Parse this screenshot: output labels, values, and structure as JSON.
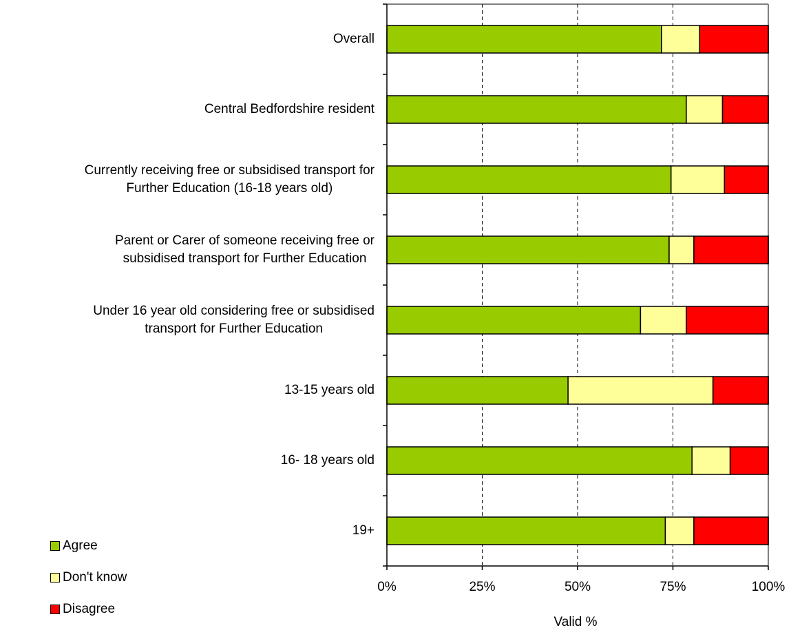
{
  "chart_data": {
    "type": "bar",
    "orientation": "horizontal",
    "stacked": true,
    "categories": [
      "Overall",
      "Central Bedfordshire resident",
      "Currently receiving free or subsidised transport for\nFurther Education (16-18 years old)",
      "Parent or Carer of someone receiving free or\nsubsidised transport for Further Education",
      "Under 16 year old considering free or subsidised\ntransport for Further Education",
      "13-15 years old",
      "16- 18 years old",
      "19+"
    ],
    "series": [
      {
        "name": "Agree",
        "color": "#99cc00",
        "values": [
          72,
          78.5,
          74.5,
          74,
          66.5,
          47.5,
          80,
          73
        ]
      },
      {
        "name": "Don't know",
        "color": "#ffff99",
        "values": [
          10,
          9.5,
          14,
          6.5,
          12,
          38,
          10,
          7.5
        ]
      },
      {
        "name": "Disagree",
        "color": "#ff0000",
        "values": [
          18,
          12,
          11.5,
          19.5,
          21.5,
          14.5,
          10,
          19.5
        ]
      }
    ],
    "xlim": [
      0,
      100
    ],
    "xticks": [
      "0%",
      "25%",
      "50%",
      "75%",
      "100%"
    ],
    "xlabel": "Valid %",
    "grid": "vertical dashed at 25%, 50%, 75%",
    "legend": "bottom-left"
  }
}
